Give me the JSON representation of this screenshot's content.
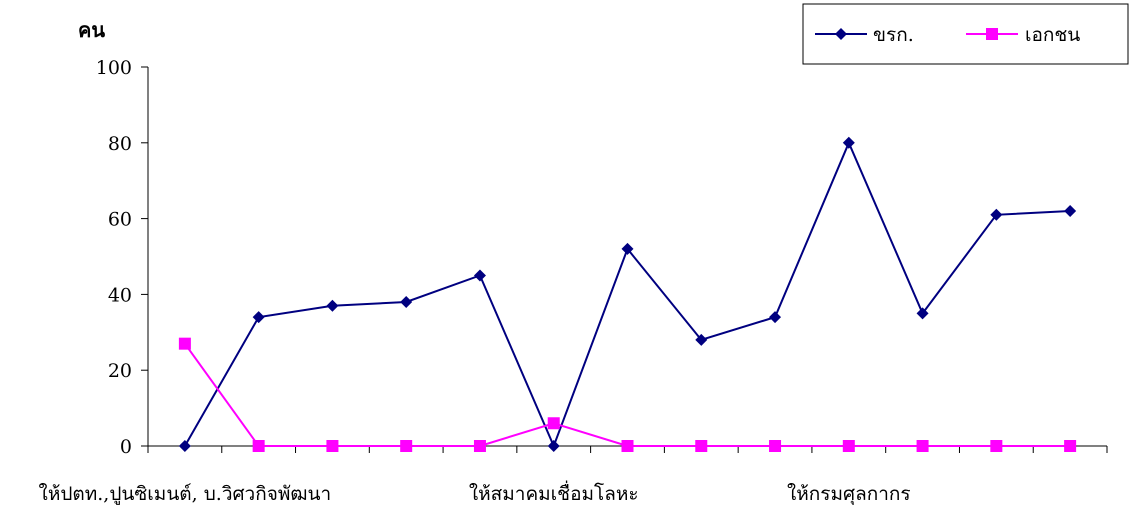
{
  "chart_data": {
    "type": "line",
    "ylabel": "คน",
    "xlabel": "",
    "ylim": [
      0,
      100
    ],
    "yticks": [
      0,
      20,
      40,
      60,
      80,
      100
    ],
    "x": [
      1,
      2,
      3,
      4,
      5,
      6,
      7,
      8,
      9,
      10,
      11,
      12,
      13
    ],
    "category_labels": [
      {
        "at": 1,
        "text": "ให้ปตท.,ปูนซิเมนต์, บ.วิศวกิจพัฒนา"
      },
      {
        "at": 6,
        "text": "ให้สมาคมเชื่อมโลหะ"
      },
      {
        "at": 10,
        "text": "ให้กรมศุลกากร"
      }
    ],
    "series": [
      {
        "name": "ขรก.",
        "color": "#000080",
        "marker": "diamond",
        "values": [
          0,
          34,
          37,
          38,
          45,
          0,
          52,
          28,
          34,
          80,
          35,
          61,
          62
        ]
      },
      {
        "name": "เอกชน",
        "color": "#ff00ff",
        "marker": "square",
        "values": [
          27,
          0,
          0,
          0,
          0,
          6,
          0,
          0,
          0,
          0,
          0,
          0,
          0
        ]
      }
    ],
    "grid": false,
    "legend_position": "top-right"
  }
}
